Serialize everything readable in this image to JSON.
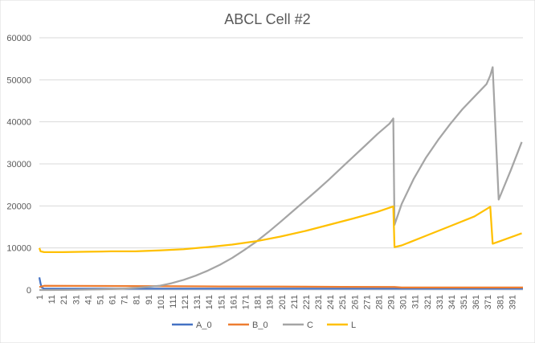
{
  "chart_data": {
    "type": "line",
    "title": "ABCL Cell #2",
    "xlabel": "",
    "ylabel": "",
    "ylim": [
      0,
      60000
    ],
    "yticks": [
      0,
      10000,
      20000,
      30000,
      40000,
      50000,
      60000
    ],
    "yticklabels": [
      "0",
      "10000",
      "20000",
      "30000",
      "40000",
      "50000",
      "60000"
    ],
    "xlim": [
      1,
      400
    ],
    "xticks": [
      1,
      11,
      21,
      31,
      41,
      51,
      61,
      71,
      81,
      91,
      101,
      111,
      121,
      131,
      141,
      151,
      161,
      171,
      181,
      191,
      201,
      211,
      221,
      231,
      241,
      251,
      261,
      271,
      281,
      291,
      301,
      311,
      321,
      331,
      341,
      351,
      361,
      371,
      381,
      391
    ],
    "grid": true,
    "legend_position": "bottom",
    "series": [
      {
        "name": "A_0",
        "color": "#4472C4",
        "x": [
          1,
          2,
          3,
          5,
          10,
          400
        ],
        "y": [
          3000,
          1500,
          600,
          300,
          300,
          300
        ]
      },
      {
        "name": "B_0",
        "color": "#ED7D31",
        "x": [
          1,
          5,
          50,
          100,
          150,
          200,
          250,
          294,
          300,
          350,
          400
        ],
        "y": [
          700,
          1000,
          950,
          900,
          850,
          800,
          750,
          700,
          600,
          600,
          600
        ]
      },
      {
        "name": "C",
        "color": "#A5A5A5",
        "x": [
          1,
          10,
          30,
          50,
          70,
          80,
          90,
          100,
          110,
          120,
          130,
          140,
          150,
          160,
          170,
          180,
          190,
          200,
          210,
          220,
          230,
          240,
          250,
          260,
          270,
          280,
          290,
          293,
          294,
          300,
          310,
          320,
          330,
          340,
          350,
          360,
          370,
          373,
          375,
          380,
          390,
          399
        ],
        "y": [
          0,
          0,
          50,
          150,
          300,
          500,
          700,
          1000,
          1600,
          2400,
          3400,
          4600,
          6000,
          7600,
          9500,
          11500,
          13800,
          16200,
          18700,
          21200,
          23700,
          26300,
          29000,
          31700,
          34400,
          37100,
          39600,
          40800,
          15500,
          20500,
          26500,
          31500,
          35700,
          39500,
          43000,
          46000,
          49000,
          51000,
          53000,
          21500,
          28500,
          35200
        ]
      },
      {
        "name": "L",
        "color": "#FFC000",
        "x": [
          1,
          2,
          5,
          20,
          40,
          60,
          80,
          100,
          120,
          140,
          160,
          180,
          200,
          220,
          240,
          260,
          280,
          293,
          294,
          300,
          320,
          340,
          360,
          373,
          375,
          380,
          399
        ],
        "y": [
          10000,
          9200,
          9000,
          9000,
          9100,
          9200,
          9200,
          9400,
          9700,
          10200,
          10800,
          11600,
          12700,
          14000,
          15500,
          17000,
          18600,
          19900,
          10200,
          10600,
          12900,
          15200,
          17500,
          19800,
          11000,
          11500,
          13500
        ]
      }
    ]
  }
}
